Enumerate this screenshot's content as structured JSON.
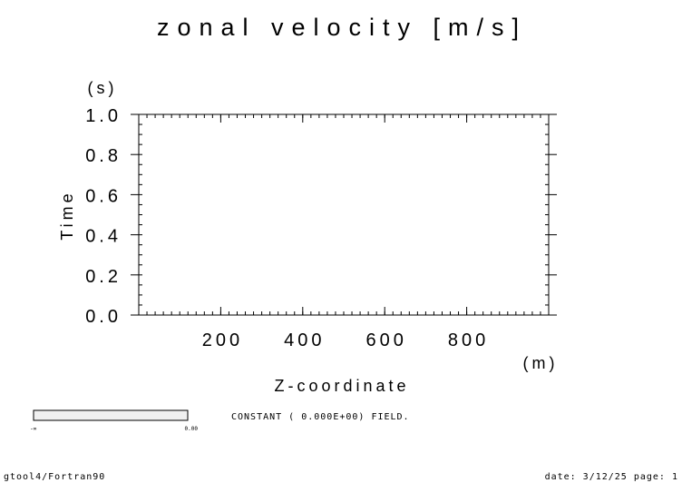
{
  "chart_data": {
    "type": "heatmap",
    "title": "zonal velocity [m/s]",
    "xlabel": "Z-coordinate",
    "x_unit": "(m)",
    "ylabel": "Time",
    "y_unit": "(s)",
    "xlim": [
      0,
      1000
    ],
    "ylim": [
      0.0,
      1.0
    ],
    "x_major_ticks": [
      200,
      400,
      600,
      800
    ],
    "x_tick_labels": [
      "200",
      "400",
      "600",
      "800"
    ],
    "y_major_ticks": [
      0.0,
      0.2,
      0.4,
      0.6,
      0.8,
      1.0
    ],
    "y_tick_labels": [
      "0.0",
      "0.2",
      "0.4",
      "0.6",
      "0.8",
      "1.0"
    ],
    "field_message": "CONSTANT ( 0.000E+00) FIELD.",
    "colorbar": {
      "min_label": "-∞",
      "max_label": "0.00"
    },
    "grid": false
  },
  "footer": {
    "left": "gtool4/Fortran90",
    "right": "date: 3/12/25 page: 1"
  }
}
